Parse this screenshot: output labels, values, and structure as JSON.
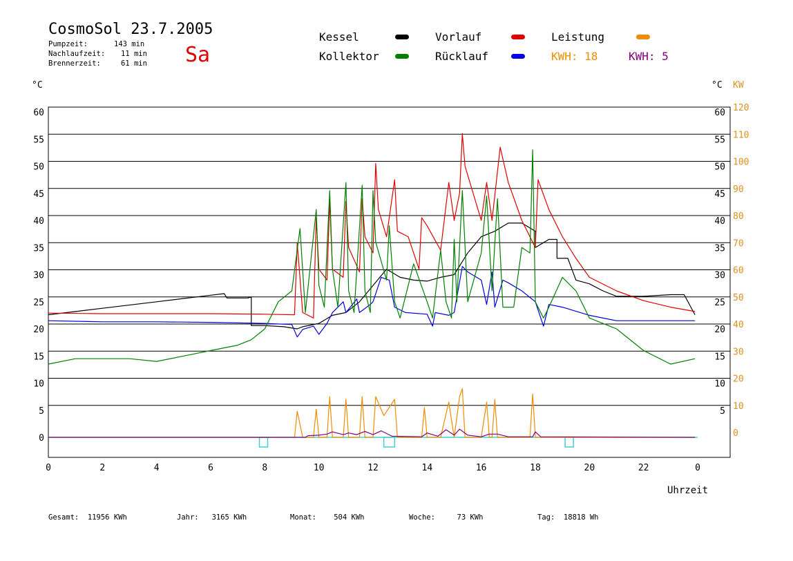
{
  "header": {
    "title": "CosmoSol 23.7.2005",
    "stats": [
      {
        "label": "Pumpzeit:",
        "value": "143 min"
      },
      {
        "label": "Nachlaufzeit:",
        "value": "11 min"
      },
      {
        "label": "Brennerzeit:",
        "value": "61 min"
      }
    ],
    "day": "Sa"
  },
  "legend": {
    "kessel": "Kessel",
    "vorlauf": "Vorlauf",
    "leistung": "Leistung",
    "kollektor": "Kollektor",
    "ruecklauf": "Rücklauf",
    "kwh_orange": "KWH: 18",
    "kwh_purple": "KWH: 5"
  },
  "colors": {
    "kessel": "#000000",
    "vorlauf": "#e00000",
    "leistung": "#f08c00",
    "kollektor": "#008000",
    "ruecklauf": "#0000e0",
    "kwh_purple": "#800080",
    "base": "#40d0d0",
    "right_kw_text": "#e09020"
  },
  "footer": {
    "gesamt": "Gesamt:  11956 KWh",
    "jahr": "Jahr:   3165 KWh",
    "monat": "Monat:    504 KWh",
    "woche": "Woche:     73 KWh",
    "tag": "Tag:  18818 Wh"
  },
  "chart_data": {
    "type": "line",
    "xlabel": "Uhrzeit",
    "ylabel_left": "°C",
    "ylabel_right": "°C",
    "ylabel_right2": "KW",
    "xlim": [
      0,
      24
    ],
    "ylim": [
      -4,
      61
    ],
    "x_ticks": [
      "0",
      "2",
      "4",
      "6",
      "8",
      "10",
      "12",
      "14",
      "16",
      "18",
      "20",
      "22",
      "0"
    ],
    "y_ticks": [
      0,
      5,
      10,
      15,
      20,
      25,
      30,
      35,
      40,
      45,
      50,
      55,
      60
    ],
    "y_ticks_right": [
      5,
      10,
      15,
      20,
      25,
      30,
      35,
      40,
      45,
      50,
      55,
      60
    ],
    "kw_ticks": [
      0,
      10,
      20,
      30,
      40,
      50,
      60,
      70,
      80,
      90,
      100,
      110,
      120
    ],
    "grid": true,
    "series": [
      {
        "name": "Kessel",
        "color": "#000000",
        "points": [
          [
            0,
            22.6
          ],
          [
            2,
            23.8
          ],
          [
            4,
            25
          ],
          [
            6,
            26.2
          ],
          [
            6.5,
            26.5
          ],
          [
            6.6,
            25.7
          ],
          [
            7.4,
            25.7
          ],
          [
            7.4,
            25.8
          ],
          [
            7.5,
            25.8
          ],
          [
            7.5,
            20.6
          ],
          [
            8,
            20.6
          ],
          [
            8.7,
            20.4
          ],
          [
            9.2,
            20
          ],
          [
            9.4,
            20.4
          ],
          [
            10,
            21
          ],
          [
            10.5,
            22.5
          ],
          [
            11,
            23
          ],
          [
            11.5,
            25
          ],
          [
            12,
            28
          ],
          [
            12.5,
            31
          ],
          [
            13,
            29.5
          ],
          [
            13.5,
            29
          ],
          [
            14,
            28.8
          ],
          [
            14.5,
            29.5
          ],
          [
            15,
            30
          ],
          [
            15.5,
            34
          ],
          [
            16,
            37
          ],
          [
            16.5,
            38
          ],
          [
            17,
            39.5
          ],
          [
            17.5,
            39.5
          ],
          [
            18,
            38
          ],
          [
            18,
            35
          ],
          [
            18.5,
            36.5
          ],
          [
            18.8,
            36.5
          ],
          [
            18.8,
            33
          ],
          [
            19.2,
            33
          ],
          [
            19.5,
            29
          ],
          [
            20,
            28.3
          ],
          [
            20.5,
            27
          ],
          [
            21,
            26
          ],
          [
            22,
            26
          ],
          [
            23,
            26.3
          ],
          [
            23.5,
            26.3
          ],
          [
            23.9,
            22.6
          ]
        ]
      },
      {
        "name": "Vorlauf",
        "color": "#e00000",
        "points": [
          [
            0,
            22.9
          ],
          [
            2,
            22.8
          ],
          [
            4,
            22.8
          ],
          [
            6,
            22.8
          ],
          [
            8,
            22.7
          ],
          [
            9.1,
            22.6
          ],
          [
            9.2,
            35.8
          ],
          [
            9.4,
            23
          ],
          [
            9.8,
            22
          ],
          [
            9.9,
            40.5
          ],
          [
            10,
            31
          ],
          [
            10.3,
            29
          ],
          [
            10.4,
            43.5
          ],
          [
            10.5,
            31
          ],
          [
            10.9,
            29.5
          ],
          [
            11,
            43.5
          ],
          [
            11.1,
            35
          ],
          [
            11.5,
            30.5
          ],
          [
            11.6,
            44
          ],
          [
            11.7,
            37
          ],
          [
            12,
            34
          ],
          [
            12.1,
            50.5
          ],
          [
            12.2,
            42
          ],
          [
            12.5,
            37
          ],
          [
            12.8,
            47.5
          ],
          [
            12.9,
            38
          ],
          [
            13.3,
            37
          ],
          [
            13.7,
            31
          ],
          [
            13.8,
            40.5
          ],
          [
            14,
            39
          ],
          [
            14.5,
            34.5
          ],
          [
            14.8,
            47
          ],
          [
            15,
            40
          ],
          [
            15.2,
            45
          ],
          [
            15.3,
            56
          ],
          [
            15.4,
            50
          ],
          [
            16,
            40
          ],
          [
            16.2,
            47
          ],
          [
            16.4,
            40
          ],
          [
            16.7,
            53.5
          ],
          [
            17,
            47
          ],
          [
            17.5,
            40
          ],
          [
            18,
            35
          ],
          [
            18.1,
            47.5
          ],
          [
            18.5,
            42
          ],
          [
            19,
            37
          ],
          [
            19.5,
            33
          ],
          [
            20,
            29.5
          ],
          [
            21,
            27
          ],
          [
            22,
            25.2
          ],
          [
            23,
            24
          ],
          [
            23.9,
            23.2
          ]
        ]
      },
      {
        "name": "Rücklauf",
        "color": "#0000e0",
        "points": [
          [
            0,
            21.5
          ],
          [
            2,
            21.3
          ],
          [
            4,
            21.3
          ],
          [
            6,
            21.2
          ],
          [
            8,
            21
          ],
          [
            9,
            20.8
          ],
          [
            9.2,
            18.5
          ],
          [
            9.4,
            19.9
          ],
          [
            9.8,
            20.5
          ],
          [
            10,
            19
          ],
          [
            10.3,
            21
          ],
          [
            10.5,
            23
          ],
          [
            10.9,
            25
          ],
          [
            11,
            23
          ],
          [
            11.4,
            25.5
          ],
          [
            11.5,
            23
          ],
          [
            11.9,
            24.5
          ],
          [
            12,
            25
          ],
          [
            12.3,
            29.5
          ],
          [
            12.6,
            29
          ],
          [
            12.8,
            24
          ],
          [
            13.2,
            23
          ],
          [
            14,
            22.7
          ],
          [
            14.2,
            20.5
          ],
          [
            14.3,
            23
          ],
          [
            14.8,
            22.5
          ],
          [
            15,
            23
          ],
          [
            15.3,
            31.5
          ],
          [
            15.5,
            30.5
          ],
          [
            16,
            29
          ],
          [
            16.2,
            24.5
          ],
          [
            16.4,
            30.5
          ],
          [
            16.5,
            24
          ],
          [
            16.8,
            29
          ],
          [
            17,
            28.5
          ],
          [
            17.5,
            27
          ],
          [
            18,
            25
          ],
          [
            18.3,
            20.5
          ],
          [
            18.5,
            24.5
          ],
          [
            19,
            24
          ],
          [
            20,
            22.5
          ],
          [
            21,
            21.5
          ],
          [
            23.9,
            21.5
          ]
        ]
      },
      {
        "name": "Kollektor",
        "color": "#008000",
        "points": [
          [
            0,
            13.5
          ],
          [
            1,
            14.5
          ],
          [
            2,
            14.5
          ],
          [
            3,
            14.5
          ],
          [
            4,
            14
          ],
          [
            5,
            15
          ],
          [
            6,
            16
          ],
          [
            7,
            17
          ],
          [
            7.5,
            18
          ],
          [
            8,
            20
          ],
          [
            8.5,
            25
          ],
          [
            9,
            27
          ],
          [
            9.3,
            38.5
          ],
          [
            9.5,
            23
          ],
          [
            9.9,
            42
          ],
          [
            10,
            28
          ],
          [
            10.2,
            24
          ],
          [
            10.4,
            45.5
          ],
          [
            10.5,
            31
          ],
          [
            10.7,
            24
          ],
          [
            11,
            47
          ],
          [
            11.1,
            27
          ],
          [
            11.3,
            23
          ],
          [
            11.6,
            46.5
          ],
          [
            11.7,
            27
          ],
          [
            11.9,
            23
          ],
          [
            12,
            45.5
          ],
          [
            12.1,
            36
          ],
          [
            12.5,
            29
          ],
          [
            12.6,
            39
          ],
          [
            12.8,
            25
          ],
          [
            13,
            22
          ],
          [
            13.5,
            32
          ],
          [
            14,
            25
          ],
          [
            14.2,
            22
          ],
          [
            14.5,
            34.5
          ],
          [
            14.7,
            25
          ],
          [
            14.9,
            22
          ],
          [
            15,
            36.5
          ],
          [
            15.1,
            25
          ],
          [
            15.3,
            45.5
          ],
          [
            15.5,
            25
          ],
          [
            16,
            34
          ],
          [
            16.2,
            44.5
          ],
          [
            16.4,
            27
          ],
          [
            16.6,
            44
          ],
          [
            16.8,
            24
          ],
          [
            17.2,
            24
          ],
          [
            17.5,
            35
          ],
          [
            17.8,
            34
          ],
          [
            17.9,
            53
          ],
          [
            18,
            25
          ],
          [
            18.3,
            22
          ],
          [
            18.5,
            24
          ],
          [
            19,
            29.5
          ],
          [
            19.5,
            27
          ],
          [
            20,
            22
          ],
          [
            21,
            20
          ],
          [
            22,
            16
          ],
          [
            23,
            13.5
          ],
          [
            23.9,
            14.5
          ]
        ]
      },
      {
        "name": "Leistung",
        "color": "#f08c00",
        "points": [
          [
            0,
            0
          ],
          [
            9.1,
            0
          ],
          [
            9.2,
            4.8
          ],
          [
            9.4,
            0
          ],
          [
            9.8,
            0
          ],
          [
            9.9,
            5.2
          ],
          [
            10,
            0
          ],
          [
            10.3,
            0
          ],
          [
            10.4,
            7.5
          ],
          [
            10.5,
            0
          ],
          [
            10.9,
            0
          ],
          [
            11,
            7
          ],
          [
            11.1,
            0
          ],
          [
            11.5,
            0
          ],
          [
            11.6,
            7.5
          ],
          [
            11.7,
            0
          ],
          [
            12,
            0
          ],
          [
            12.1,
            7.5
          ],
          [
            12.4,
            4
          ],
          [
            12.8,
            7
          ],
          [
            12.9,
            0
          ],
          [
            13.8,
            0
          ],
          [
            13.9,
            5.5
          ],
          [
            14,
            0
          ],
          [
            14.5,
            0
          ],
          [
            14.8,
            6.5
          ],
          [
            15,
            0
          ],
          [
            15.2,
            7.5
          ],
          [
            15.3,
            9
          ],
          [
            15.4,
            0
          ],
          [
            16,
            0
          ],
          [
            16.2,
            6.5
          ],
          [
            16.3,
            0
          ],
          [
            16.4,
            0
          ],
          [
            16.5,
            7
          ],
          [
            16.6,
            0
          ],
          [
            17.8,
            0
          ],
          [
            17.9,
            8
          ],
          [
            18,
            0
          ],
          [
            23.9,
            0
          ]
        ]
      },
      {
        "name": "KWH",
        "color": "#800080",
        "points": [
          [
            0,
            0
          ],
          [
            9.5,
            0
          ],
          [
            9.6,
            0.3
          ],
          [
            10,
            0.4
          ],
          [
            10.3,
            0.6
          ],
          [
            10.5,
            1
          ],
          [
            10.9,
            0.5
          ],
          [
            11.1,
            0.8
          ],
          [
            11.4,
            0.5
          ],
          [
            11.7,
            1.1
          ],
          [
            12,
            0.5
          ],
          [
            12.3,
            1.2
          ],
          [
            12.7,
            0.2
          ],
          [
            13.8,
            0.1
          ],
          [
            14,
            0.8
          ],
          [
            14.4,
            0.2
          ],
          [
            14.7,
            1.4
          ],
          [
            15,
            0.4
          ],
          [
            15.2,
            1.5
          ],
          [
            15.5,
            0.4
          ],
          [
            16,
            0.1
          ],
          [
            16.3,
            0.6
          ],
          [
            16.6,
            0.6
          ],
          [
            17,
            0.1
          ],
          [
            17.9,
            0.1
          ],
          [
            18,
            1
          ],
          [
            18.2,
            0.1
          ],
          [
            23.9,
            0
          ]
        ]
      }
    ],
    "pump_markers": [
      [
        7.8,
        8.1
      ],
      [
        12.4,
        12.8
      ],
      [
        19.1,
        19.3
      ]
    ]
  }
}
